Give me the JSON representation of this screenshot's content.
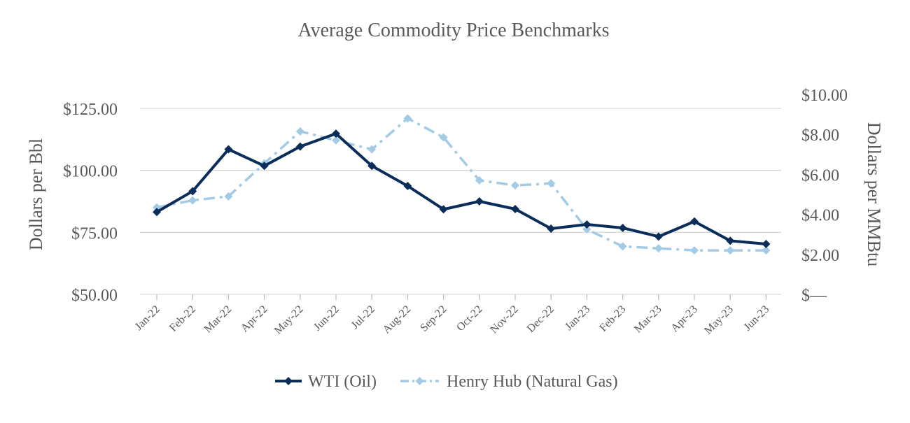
{
  "chart_data": {
    "type": "line",
    "title": "Average Commodity Price Benchmarks",
    "categories": [
      "Jan-22",
      "Feb-22",
      "Mar-22",
      "Apr-22",
      "May-22",
      "Jun-22",
      "Jul-22",
      "Aug-22",
      "Sep-22",
      "Oct-22",
      "Nov-22",
      "Dec-22",
      "Jan-23",
      "Feb-23",
      "Mar-23",
      "Apr-23",
      "May-23",
      "Jun-23"
    ],
    "y_left": {
      "label": "Dollars per Bbl",
      "range": [
        50,
        125
      ],
      "ticks": [
        125,
        100,
        75,
        50
      ],
      "tick_labels": [
        "$125.00",
        "$100.00",
        "$75.00",
        "$50.00"
      ]
    },
    "y_right": {
      "label": "Dollars per MMBtu",
      "range": [
        0,
        10
      ],
      "ticks": [
        10,
        8,
        6,
        4,
        2,
        0
      ],
      "tick_labels": [
        "$10.00",
        "$8.00",
        "$6.00",
        "$4.00",
        "$2.00",
        "$—"
      ]
    },
    "series": [
      {
        "name": "WTI (Oil)",
        "axis": "left",
        "color": "#0b2d59",
        "dash": "solid",
        "values": [
          83.2,
          91.6,
          108.5,
          101.8,
          109.6,
          114.8,
          101.8,
          93.7,
          84.3,
          87.5,
          84.4,
          76.5,
          78.2,
          76.8,
          73.3,
          79.4,
          71.6,
          70.3
        ]
      },
      {
        "name": "Henry Hub (Natural Gas)",
        "axis": "right",
        "color": "#a3cbe5",
        "dash": "dash-dot",
        "values": [
          4.35,
          4.7,
          4.9,
          6.55,
          8.15,
          7.7,
          7.25,
          8.8,
          7.85,
          5.7,
          5.45,
          5.55,
          3.25,
          2.4,
          2.3,
          2.2,
          2.2,
          2.2
        ]
      }
    ],
    "legend_position": "bottom"
  }
}
